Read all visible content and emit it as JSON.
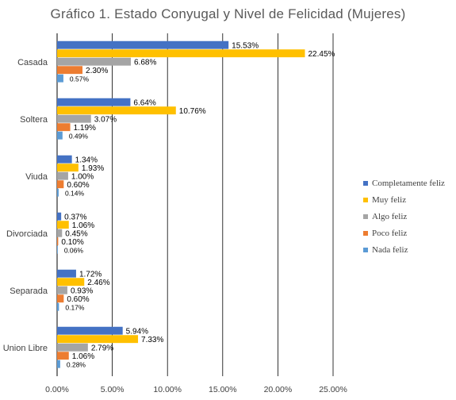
{
  "chart_data": {
    "type": "bar",
    "orientation": "horizontal",
    "title": "Gráfico 1. Estado Conyugal y Nivel de Felicidad (Mujeres)",
    "categories": [
      "Casada",
      "Soltera",
      "Viuda",
      "Divorciada",
      "Separada",
      "Union Libre"
    ],
    "series": [
      {
        "name": "Completamente feliz",
        "color": "#4472C4",
        "values": [
          15.53,
          6.64,
          1.34,
          0.37,
          1.72,
          5.94
        ],
        "labels": [
          "15.53%",
          "6.64%",
          "1.34%",
          "0.37%",
          "1.72%",
          "5.94%"
        ]
      },
      {
        "name": "Muy feliz",
        "color": "#FFC000",
        "values": [
          22.45,
          10.76,
          1.93,
          1.06,
          2.46,
          7.33
        ],
        "labels": [
          "22.45%",
          "10.76%",
          "1.93%",
          "1.06%",
          "2.46%",
          "7.33%"
        ]
      },
      {
        "name": "Algo feliz",
        "color": "#A5A5A5",
        "values": [
          6.68,
          3.07,
          1.0,
          0.45,
          0.93,
          2.79
        ],
        "labels": [
          "6.68%",
          "3.07%",
          "1.00%",
          "0.45%",
          "0.93%",
          "2.79%"
        ]
      },
      {
        "name": "Poco feliz",
        "color": "#ED7D31",
        "values": [
          2.3,
          1.19,
          0.6,
          0.1,
          0.6,
          1.06
        ],
        "labels": [
          "2.30%",
          "1.19%",
          "0.60%",
          "0.10%",
          "0.60%",
          "1.06%"
        ]
      },
      {
        "name": "Nada feliz",
        "color": "#5B9BD5",
        "values": [
          0.57,
          0.49,
          0.14,
          0.06,
          0.17,
          0.28
        ],
        "labels": [
          "0.57%",
          "0.49%",
          "0.14%",
          "0.06%",
          "0.17%",
          "0.28%"
        ]
      }
    ],
    "xlim": [
      0,
      25
    ],
    "xticks": [
      "0.00%",
      "5.00%",
      "10.00%",
      "15.00%",
      "20.00%",
      "25.00%"
    ],
    "grid": true,
    "legend_position": "right"
  }
}
